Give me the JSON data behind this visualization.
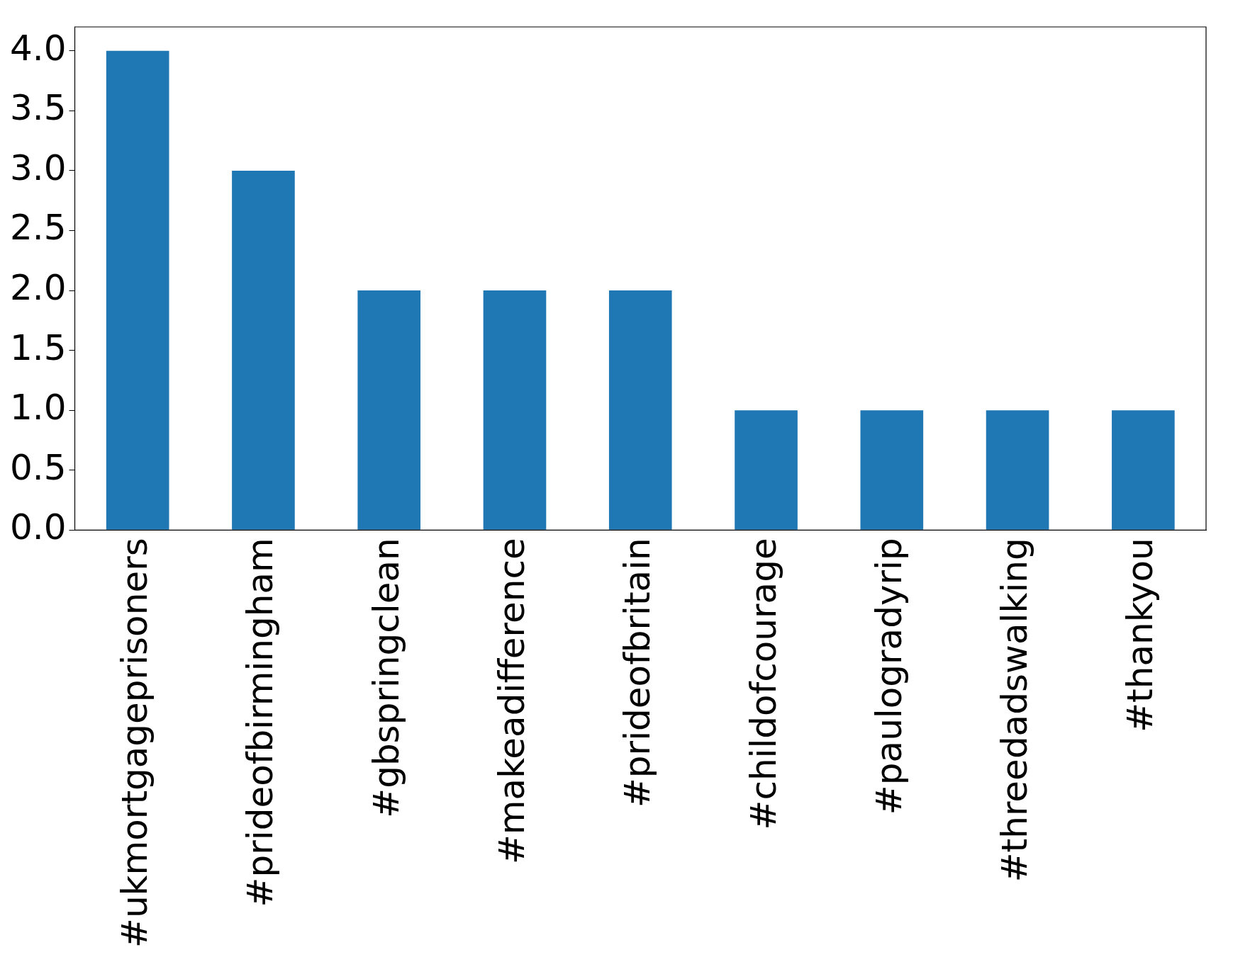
{
  "chart_data": {
    "type": "bar",
    "categories": [
      "#ukmortgageprisoners",
      "#prideofbirmingham",
      "#gbspringclean",
      "#makeadifference",
      "#prideofbritain",
      "#childofcourage",
      "#paulogradyrip",
      "#threedadswalking",
      "#thankyou"
    ],
    "values": [
      4,
      3,
      2,
      2,
      2,
      1,
      1,
      1,
      1
    ],
    "color": "#1f77b4",
    "ylim": [
      0,
      4.2
    ],
    "yticks": [
      {
        "value": 0,
        "label": "0.0"
      },
      {
        "value": 0.5,
        "label": "0.5"
      },
      {
        "value": 1,
        "label": "1.0"
      },
      {
        "value": 1.5,
        "label": "1.5"
      },
      {
        "value": 2,
        "label": "2.0"
      },
      {
        "value": 2.5,
        "label": "2.5"
      },
      {
        "value": 3,
        "label": "3.0"
      },
      {
        "value": 3.5,
        "label": "3.5"
      },
      {
        "value": 4,
        "label": "4.0"
      }
    ],
    "grid": false,
    "legend": false
  }
}
